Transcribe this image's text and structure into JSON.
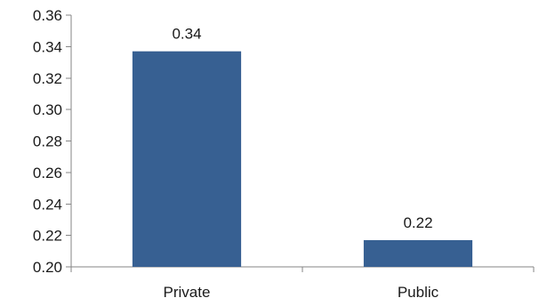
{
  "chart_data": {
    "type": "bar",
    "categories": [
      "Private",
      "Public"
    ],
    "values": [
      0.337,
      0.217
    ],
    "data_labels": [
      "0.34",
      "0.22"
    ],
    "title": "",
    "xlabel": "",
    "ylabel": "",
    "ylim": [
      0.2,
      0.36
    ],
    "yticks": [
      "0.20",
      "0.22",
      "0.24",
      "0.26",
      "0.28",
      "0.30",
      "0.32",
      "0.34",
      "0.36"
    ],
    "grid": false,
    "legend": "none",
    "bar_color": "#376092"
  }
}
